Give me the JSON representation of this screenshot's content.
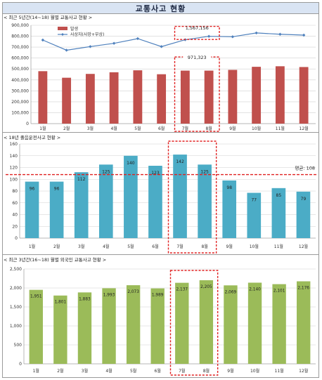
{
  "page_title": "교통사고 현황",
  "chart_data": [
    {
      "type": "bar+line",
      "caption": "< 최근 5년간(14~18) 월별 교통사고 현황 >",
      "categories": [
        "1월",
        "2월",
        "3월",
        "4월",
        "5월",
        "6월",
        "7월",
        "8월",
        "9월",
        "10월",
        "11월",
        "12월"
      ],
      "series": [
        {
          "name": "발생",
          "type": "bar",
          "color": "#c0504d",
          "values": [
            480000,
            420000,
            455000,
            470000,
            488000,
            452000,
            485000,
            485000,
            492000,
            520000,
            525000,
            518000
          ]
        },
        {
          "name": "사상자(사망+부상)",
          "type": "line",
          "color": "#4f81bd",
          "values": [
            765000,
            672000,
            705000,
            735000,
            778000,
            705000,
            768000,
            799000,
            795000,
            830000,
            818000,
            810000
          ]
        }
      ],
      "ylim": [
        0,
        900000
      ],
      "yticks": [
        "0",
        "100,000",
        "200,000",
        "300,000",
        "400,000",
        "500,000",
        "600,000",
        "700,000",
        "800,000",
        "900,000"
      ],
      "annotations": [
        {
          "label": "1,567,156",
          "months": [
            "7월",
            "8월"
          ],
          "target": "사상자(사망+부상)"
        },
        {
          "label": "971,323",
          "months": [
            "7월",
            "8월"
          ],
          "target": "발생"
        }
      ],
      "grid": true,
      "legend": "top-left"
    },
    {
      "type": "bar",
      "caption": "< 18년 졸음운전사고 현황 >",
      "categories": [
        "1월",
        "2월",
        "3월",
        "4월",
        "5월",
        "6월",
        "7월",
        "8월",
        "9월",
        "10월",
        "11월",
        "12월"
      ],
      "values": [
        96,
        96,
        112,
        125,
        140,
        123,
        142,
        125,
        98,
        77,
        85,
        79
      ],
      "color": "#4bacc6",
      "ylim": [
        0,
        160
      ],
      "yticks": [
        "0",
        "20",
        "40",
        "60",
        "80",
        "100",
        "120",
        "140",
        "160"
      ],
      "average": {
        "label": "평균: 108",
        "value": 108
      },
      "highlight": [
        "7월",
        "8월"
      ],
      "grid": true
    },
    {
      "type": "bar",
      "caption": "< 최근 3년간(16~18) 월별 외국인 교통사고 현황 >",
      "categories": [
        "1월",
        "2월",
        "3월",
        "4월",
        "5월",
        "6월",
        "7월",
        "8월",
        "9월",
        "10월",
        "11월",
        "12월"
      ],
      "values": [
        1951,
        1801,
        1883,
        1993,
        2073,
        1989,
        2137,
        2205,
        2069,
        2140,
        2101,
        2176
      ],
      "labels": [
        "1,951",
        "1,801",
        "1,883",
        "1,993",
        "2,073",
        "1,989",
        "2,137",
        "2,205",
        "2,069",
        "2,140",
        "2,101",
        "2,176"
      ],
      "color": "#9bbb59",
      "ylim": [
        0,
        2500
      ],
      "yticks": [
        "0",
        "500",
        "1,000",
        "1,500",
        "2,000",
        "2,500"
      ],
      "highlight": [
        "7월",
        "8월"
      ],
      "grid": true
    }
  ]
}
